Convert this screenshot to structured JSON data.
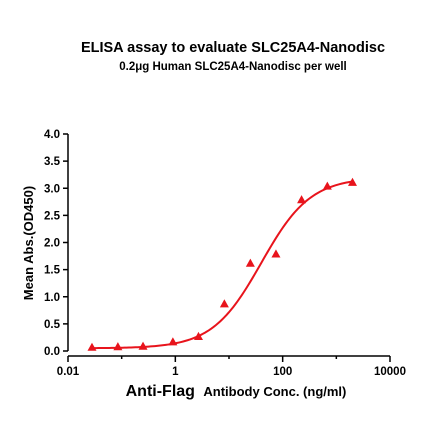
{
  "chart_data": {
    "type": "scatter",
    "title": "ELISA assay to evaluate SLC25A4-Nanodisc",
    "subtitle": "0.2μg Human SLC25A4-Nanodisc per well",
    "xlabel_bold": "Anti-Flag",
    "xlabel_rest": "Antibody Conc. (ng/ml)",
    "ylabel": "Mean Abs.(OD450)",
    "x_scale": "log",
    "xlim": [
      0.01,
      10000
    ],
    "ylim": [
      0,
      4
    ],
    "x_ticks": [
      0.01,
      1,
      100,
      10000
    ],
    "x_tick_labels": [
      "0.01",
      "1",
      "100",
      "10000"
    ],
    "y_ticks": [
      0,
      0.5,
      1,
      1.5,
      2,
      2.5,
      3,
      3.5,
      4
    ],
    "y_tick_labels": [
      "0.0",
      "0.5",
      "1.0",
      "1.5",
      "2.0",
      "2.5",
      "3.0",
      "3.5",
      "4.0"
    ],
    "grid": false,
    "color": "#e8141c",
    "series": [
      {
        "x": [
          0.028,
          0.085,
          0.25,
          0.9,
          2.7,
          8.2,
          25,
          75,
          225,
          680,
          2000
        ],
        "y": [
          0.07,
          0.08,
          0.09,
          0.17,
          0.27,
          0.87,
          1.62,
          1.79,
          2.79,
          3.04,
          3.11
        ]
      }
    ],
    "fit_curve": {
      "model": "4PL",
      "bottom": 0.05,
      "top": 3.2,
      "ec50": 40,
      "hill": 0.95
    }
  }
}
